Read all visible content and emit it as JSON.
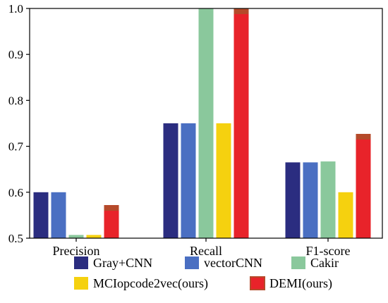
{
  "chart_data": {
    "type": "bar",
    "title": "",
    "xlabel": "",
    "ylabel": "",
    "categories": [
      "Precision",
      "Recall",
      "F1-score"
    ],
    "ylim": [
      0.5,
      1.0
    ],
    "yticks": [
      "0.5",
      "0.6",
      "0.7",
      "0.8",
      "0.9",
      "1.0"
    ],
    "grid": false,
    "legend_position": "bottom",
    "series": [
      {
        "name": "Gray+CNN",
        "color": "#2b2d80",
        "values": [
          0.6,
          0.75,
          0.665
        ]
      },
      {
        "name": "vectorCNN",
        "color": "#4a6fc2",
        "values": [
          0.6,
          0.75,
          0.665
        ]
      },
      {
        "name": "Cakir",
        "color": "#8ac89c",
        "values": [
          0.507,
          1.0,
          0.667
        ]
      },
      {
        "name": "MCIopcode2vec(ours)",
        "color": "#f5d10f",
        "values": [
          0.507,
          0.75,
          0.6
        ]
      },
      {
        "name": "DEMI(ours)",
        "color": "#e8232a",
        "edge_color": "#b54a2a",
        "values": [
          0.572,
          1.0,
          0.727
        ]
      }
    ]
  }
}
